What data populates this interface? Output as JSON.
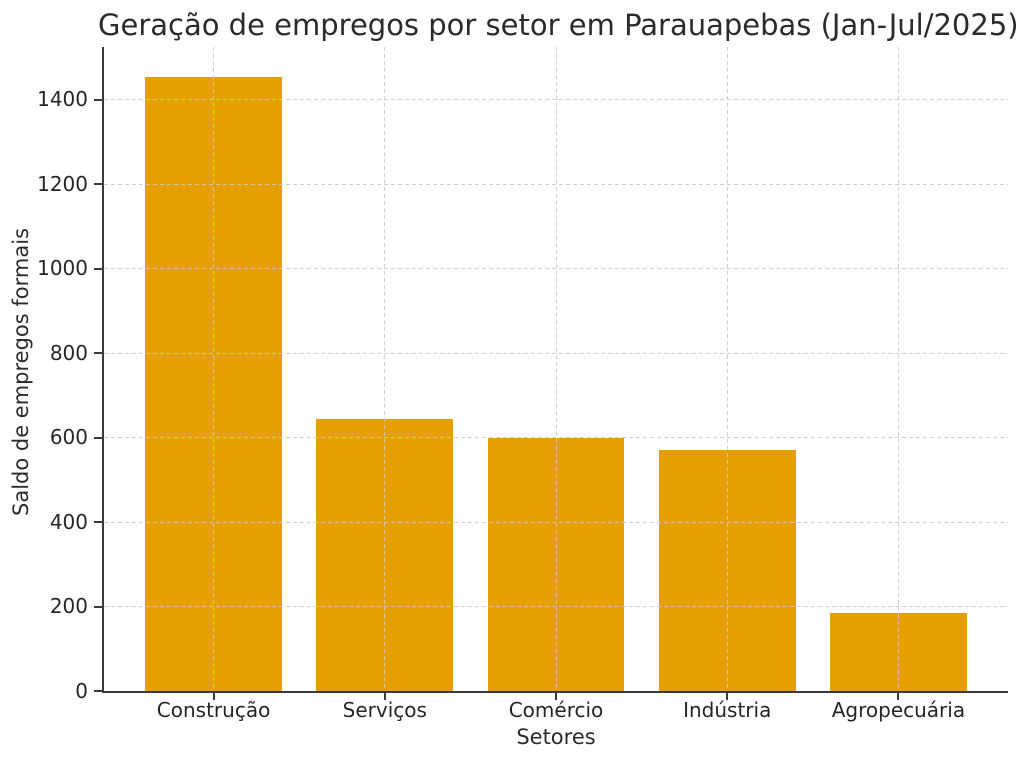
{
  "chart_data": {
    "type": "bar",
    "title": "Geração de empregos por setor em Parauapebas (Jan-Jul/2025)",
    "xlabel": "Setores",
    "ylabel": "Saldo de empregos formais",
    "categories": [
      "Construção",
      "Serviços",
      "Comércio",
      "Indústria",
      "Agropecuária"
    ],
    "values": [
      1455,
      645,
      600,
      570,
      185
    ],
    "yticks": [
      0,
      200,
      400,
      600,
      800,
      1000,
      1200,
      1400
    ],
    "ylim": [
      0,
      1525
    ],
    "bar_color": "#E69F00",
    "grid": true,
    "grid_style": "dashed",
    "grid_axis": "both",
    "legend": null,
    "spines": [
      "left",
      "bottom"
    ]
  }
}
